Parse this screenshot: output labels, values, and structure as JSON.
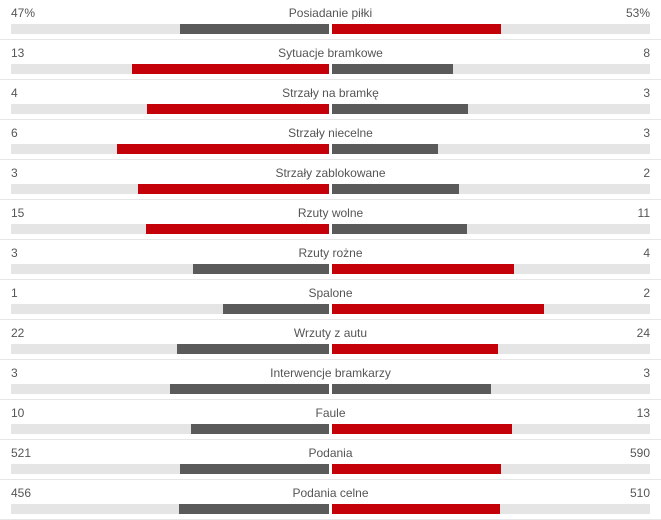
{
  "colors": {
    "winner": "#c40009",
    "loser": "#5a5a5a",
    "track": "#e5e5e5"
  },
  "stats": [
    {
      "label": "Posiadanie piłki",
      "home": "47%",
      "away": "53%",
      "home_value": 47,
      "away_value": 53
    },
    {
      "label": "Sytuacje bramkowe",
      "home": "13",
      "away": "8",
      "home_value": 13,
      "away_value": 8
    },
    {
      "label": "Strzały na bramkę",
      "home": "4",
      "away": "3",
      "home_value": 4,
      "away_value": 3
    },
    {
      "label": "Strzały niecelne",
      "home": "6",
      "away": "3",
      "home_value": 6,
      "away_value": 3
    },
    {
      "label": "Strzały zablokowane",
      "home": "3",
      "away": "2",
      "home_value": 3,
      "away_value": 2
    },
    {
      "label": "Rzuty wolne",
      "home": "15",
      "away": "11",
      "home_value": 15,
      "away_value": 11
    },
    {
      "label": "Rzuty rożne",
      "home": "3",
      "away": "4",
      "home_value": 3,
      "away_value": 4
    },
    {
      "label": "Spalone",
      "home": "1",
      "away": "2",
      "home_value": 1,
      "away_value": 2
    },
    {
      "label": "Wrzuty z autu",
      "home": "22",
      "away": "24",
      "home_value": 22,
      "away_value": 24
    },
    {
      "label": "Interwencje bramkarzy",
      "home": "3",
      "away": "3",
      "home_value": 3,
      "away_value": 3
    },
    {
      "label": "Faule",
      "home": "10",
      "away": "13",
      "home_value": 10,
      "away_value": 13
    },
    {
      "label": "Podania",
      "home": "521",
      "away": "590",
      "home_value": 521,
      "away_value": 590
    },
    {
      "label": "Podania celne",
      "home": "456",
      "away": "510",
      "home_value": 456,
      "away_value": 510
    }
  ]
}
